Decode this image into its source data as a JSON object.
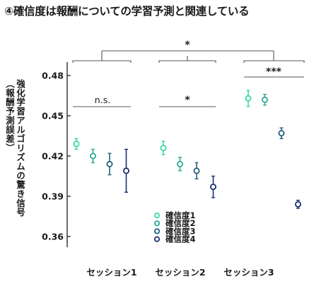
{
  "header": {
    "title": "④確信度は報酬についての学習予測と関連している"
  },
  "chart_data": {
    "type": "scatter",
    "title": "④確信度は報酬についての学習予測と関連している",
    "ylabel_lines": [
      "強化学習アルゴリズムの驚き信号",
      "（報酬予測誤差）"
    ],
    "xlabel": "",
    "ylim": [
      0.352,
      0.49
    ],
    "yticks": [
      0.36,
      0.39,
      0.42,
      0.45,
      0.48
    ],
    "ytick_labels": [
      "0.36",
      "0.39",
      "0.42",
      "0.45",
      "0.48"
    ],
    "categories": [
      "セッション1",
      "セッション2",
      "セッション3"
    ],
    "series": [
      {
        "name": "確信度1",
        "color": "#3ed6a8",
        "means": [
          0.429,
          0.426,
          0.463
        ],
        "err": [
          0.004,
          0.005,
          0.006
        ]
      },
      {
        "name": "確信度2",
        "color": "#2fa99a",
        "means": [
          0.42,
          0.414,
          0.462
        ],
        "err": [
          0.005,
          0.005,
          0.004
        ]
      },
      {
        "name": "確信度3",
        "color": "#23627e",
        "means": [
          0.414,
          0.409,
          0.437
        ],
        "err": [
          0.008,
          0.006,
          0.004
        ]
      },
      {
        "name": "確信度4",
        "color": "#1b2f73",
        "means": [
          0.409,
          0.397,
          0.384
        ],
        "err": [
          0.016,
          0.008,
          0.003
        ]
      }
    ],
    "significance": [
      {
        "label": "n.s.",
        "scope": "セッション1"
      },
      {
        "label": "*",
        "scope": "セッション2"
      },
      {
        "label": "***",
        "scope": "セッション3"
      },
      {
        "label": "*",
        "scope": "セッション間"
      }
    ],
    "legend_position": "bottom-center",
    "grid": false
  }
}
